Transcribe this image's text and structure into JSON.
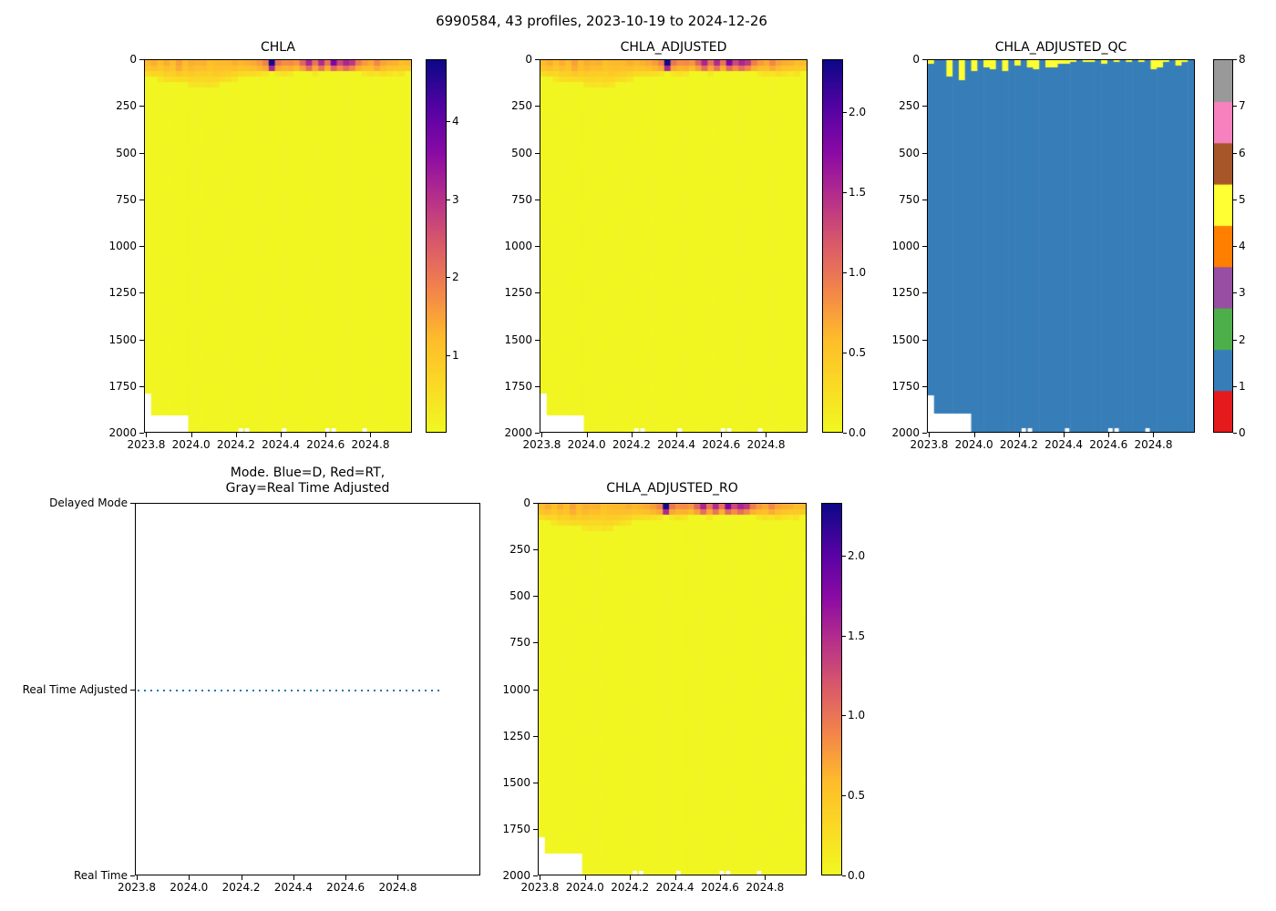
{
  "figure": {
    "suptitle": "6990584, 43 profiles, 2023-10-19 to 2024-12-26",
    "background": "#ffffff"
  },
  "colors": {
    "plasma_r_stops": [
      "#0d0887",
      "#5302a3",
      "#8b0aa5",
      "#b83289",
      "#db5c68",
      "#f48849",
      "#febd2a",
      "#fada24",
      "#f0f921"
    ],
    "qc_palette": [
      "#e41a1c",
      "#377eb8",
      "#4daf4a",
      "#984ea3",
      "#ff7f00",
      "#ffff33",
      "#a65628",
      "#f781bf",
      "#999999"
    ],
    "mode_line_color": "#1f77b4",
    "missing_data": "#ffffff"
  },
  "chart_data": {
    "type": "heatmap",
    "suptitle": "6990584, 43 profiles, 2023-10-19 to 2024-12-26",
    "x_axis": {
      "range": [
        2023.79,
        2024.985
      ],
      "ticks": [
        2023.8,
        2024.0,
        2024.2,
        2024.4,
        2024.6,
        2024.8
      ],
      "tick_labels": [
        "2023.8",
        "2024.0",
        "2024.2",
        "2024.4",
        "2024.6",
        "2024.8"
      ]
    },
    "depth_axis": {
      "range": [
        0,
        2000
      ],
      "inverted": true,
      "ticks": [
        0,
        250,
        500,
        750,
        1000,
        1250,
        1500,
        1750,
        2000
      ],
      "tick_labels": [
        "0",
        "250",
        "500",
        "750",
        "1000",
        "1250",
        "1500",
        "1750",
        "2000"
      ]
    },
    "panels": [
      {
        "id": "chla",
        "title": "CHLA",
        "type": "heatmap",
        "colormap": "plasma_r",
        "vmin": 0,
        "vmax": 4.8,
        "value_scale": 1,
        "colorbar_ticks": [
          1,
          2,
          3,
          4
        ],
        "colorbar_tick_labels": [
          "1",
          "2",
          "3",
          "4"
        ]
      },
      {
        "id": "chla_adjusted",
        "title": "CHLA_ADJUSTED",
        "type": "heatmap",
        "colormap": "plasma_r",
        "vmin": 0,
        "vmax": 2.33,
        "value_scale": 0.485,
        "colorbar_ticks": [
          0,
          0.5,
          1,
          1.5,
          2
        ],
        "colorbar_tick_labels": [
          "0.0",
          "0.5",
          "1.0",
          "1.5",
          "2.0"
        ]
      },
      {
        "id": "chla_adjusted_qc",
        "title": "CHLA_ADJUSTED_QC",
        "type": "categorical-heatmap",
        "colormap": "Set1",
        "vmin": 0,
        "vmax": 8,
        "body_flag": 1,
        "surface_flag": 5,
        "colorbar_ticks": [
          0,
          1,
          2,
          3,
          4,
          5,
          6,
          7,
          8
        ],
        "colorbar_tick_labels": [
          "0",
          "1",
          "2",
          "3",
          "4",
          "5",
          "6",
          "7",
          "8"
        ]
      },
      {
        "id": "mode",
        "title": "Mode. Blue=D, Red=RT,\nGray=Real Time Adjusted",
        "type": "line",
        "x_axis": {
          "range": [
            2023.793,
            2025.116
          ],
          "ticks": [
            2023.8,
            2024.0,
            2024.2,
            2024.4,
            2024.6,
            2024.8
          ],
          "tick_labels": [
            "2023.8",
            "2024.0",
            "2024.2",
            "2024.4",
            "2024.6",
            "2024.8"
          ]
        },
        "y_categories": [
          "Delayed Mode",
          "Real Time Adjusted",
          "Real Time"
        ],
        "line": {
          "category": "Real Time Adjusted",
          "color": "#1f77b4",
          "linestyle": "dotted",
          "t_start": 2023.8,
          "t_end": 2024.955
        }
      },
      {
        "id": "chla_adjusted_ro",
        "title": "CHLA_ADJUSTED_RO",
        "type": "heatmap",
        "colormap": "plasma_r",
        "vmin": 0,
        "vmax": 2.33,
        "value_scale": 0.485,
        "colorbar_ticks": [
          0,
          0.5,
          1,
          1.5,
          2
        ],
        "colorbar_tick_labels": [
          "0.0",
          "0.5",
          "1.0",
          "1.5",
          "2.0"
        ]
      }
    ],
    "profiles": {
      "count": 43,
      "t_start": 2023.8,
      "t_step": 0.0275,
      "surface_chla": [
        1.2,
        1.3,
        1.1,
        1.4,
        1.25,
        1.6,
        1.2,
        1.3,
        1.25,
        1.35,
        1.2,
        1.3,
        1.25,
        1.2,
        1.3,
        1.25,
        1.4,
        1.5,
        1.6,
        1.8,
        4.5,
        2.0,
        1.8,
        1.9,
        1.7,
        2.2,
        3.0,
        2.0,
        3.2,
        2.2,
        3.9,
        2.6,
        3.0,
        2.8,
        2.0,
        1.7,
        1.5,
        1.8,
        1.4,
        1.3,
        1.35,
        1.25,
        1.3
      ],
      "band_depth_m": [
        90,
        100,
        110,
        120,
        130,
        120,
        130,
        140,
        150,
        140,
        150,
        140,
        130,
        120,
        110,
        100,
        90,
        85,
        80,
        75,
        70,
        75,
        80,
        75,
        70,
        65,
        70,
        75,
        70,
        65,
        60,
        65,
        70,
        65,
        70,
        75,
        80,
        75,
        85,
        80,
        75,
        80,
        70
      ],
      "bottom_depth_m": [
        1800,
        1900,
        1900,
        1900,
        1900,
        1900,
        1900,
        2000,
        2000,
        2000,
        2000,
        2000,
        2000,
        2000,
        2000,
        2000,
        2000,
        2000,
        2000,
        2000,
        2000,
        2000,
        2000,
        2000,
        2000,
        2000,
        2000,
        2000,
        2000,
        2000,
        2000,
        2000,
        2000,
        2000,
        2000,
        2000,
        2000,
        2000,
        2000,
        2000,
        2000,
        2000,
        2000
      ],
      "qc_flag5_depth_m": [
        20,
        0,
        0,
        90,
        0,
        110,
        0,
        55,
        0,
        35,
        50,
        0,
        60,
        0,
        30,
        0,
        40,
        45,
        0,
        35,
        40,
        20,
        15,
        12,
        0,
        12,
        10,
        0,
        15,
        0,
        10,
        0,
        8,
        0,
        12,
        0,
        45,
        40,
        12,
        0,
        30,
        10,
        0
      ],
      "deep_chla": 0.07,
      "bottom_gap_profiles": [
        15,
        16,
        22,
        29,
        30,
        35
      ]
    }
  }
}
